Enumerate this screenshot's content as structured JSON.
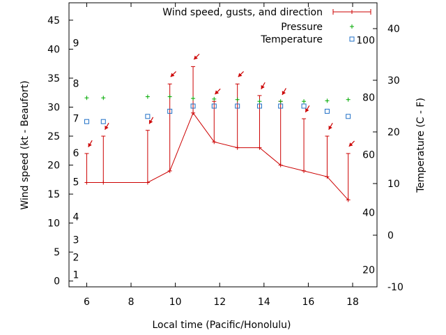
{
  "chart_data": {
    "type": "line",
    "xlabel": "Local time (Pacific/Honolulu)",
    "ylabel": "Wind speed (kt - Beaufort)",
    "y2label": "Temperature (C - F)",
    "xlim": [
      5.2,
      19.1
    ],
    "ylim": [
      -1,
      48
    ],
    "y2lim": [
      -10,
      45
    ],
    "grid": false,
    "legend_position": "top-right",
    "x_ticks": [
      6,
      8,
      10,
      12,
      14,
      16,
      18
    ],
    "y_ticks": [
      0,
      5,
      10,
      15,
      20,
      25,
      30,
      35,
      40,
      45
    ],
    "y2_ticks": [
      -10,
      0,
      10,
      20,
      30,
      40
    ],
    "beaufort_labels": [
      {
        "label": "1",
        "y": 1.1
      },
      {
        "label": "2",
        "y": 4.1
      },
      {
        "label": "3",
        "y": 7.1
      },
      {
        "label": "4",
        "y": 11.1
      },
      {
        "label": "5",
        "y": 17.1
      },
      {
        "label": "6",
        "y": 22.1
      },
      {
        "label": "7",
        "y": 28.1
      },
      {
        "label": "8",
        "y": 34.1
      },
      {
        "label": "9",
        "y": 41.1
      }
    ],
    "fahrenheit_labels": [
      {
        "label": "20",
        "c": -6.7
      },
      {
        "label": "40",
        "c": 4.4
      },
      {
        "label": "60",
        "c": 15.6
      },
      {
        "label": "80",
        "c": 26.7
      },
      {
        "label": "100",
        "c": 37.8
      }
    ],
    "series": [
      {
        "name": "Wind speed, gusts, and direction",
        "color": "#cc0000",
        "x": [
          6.0,
          6.75,
          8.75,
          9.75,
          10.8,
          11.75,
          12.8,
          13.8,
          14.75,
          15.8,
          16.85,
          17.8
        ],
        "values": [
          17,
          17,
          17,
          19,
          29,
          24,
          23,
          23,
          20,
          19,
          18,
          14
        ],
        "gusts": [
          22,
          25,
          26,
          34,
          37,
          31,
          34,
          32,
          31,
          28,
          25,
          22
        ],
        "direction_deg": [
          60,
          60,
          60,
          45,
          45,
          45,
          45,
          60,
          60,
          60,
          60,
          45
        ]
      },
      {
        "name": "Pressure",
        "color": "#00aa00",
        "x": [
          6.0,
          6.75,
          8.75,
          9.75,
          10.8,
          11.75,
          12.8,
          13.8,
          14.75,
          15.8,
          16.85,
          17.8
        ],
        "values": [
          31.6,
          31.6,
          31.8,
          31.8,
          31.5,
          31.4,
          31.3,
          31.0,
          31.0,
          31.0,
          31.1,
          31.3
        ]
      },
      {
        "name": "Temperature",
        "color": "#1f6fc6",
        "x": [
          6.0,
          6.75,
          8.75,
          9.75,
          10.8,
          11.75,
          12.8,
          13.8,
          14.75,
          15.8,
          16.85,
          17.8
        ],
        "values": [
          22.0,
          22.0,
          23.0,
          24.0,
          25.0,
          25.0,
          25.0,
          25.0,
          25.0,
          25.0,
          24.0,
          23.0
        ]
      }
    ]
  }
}
